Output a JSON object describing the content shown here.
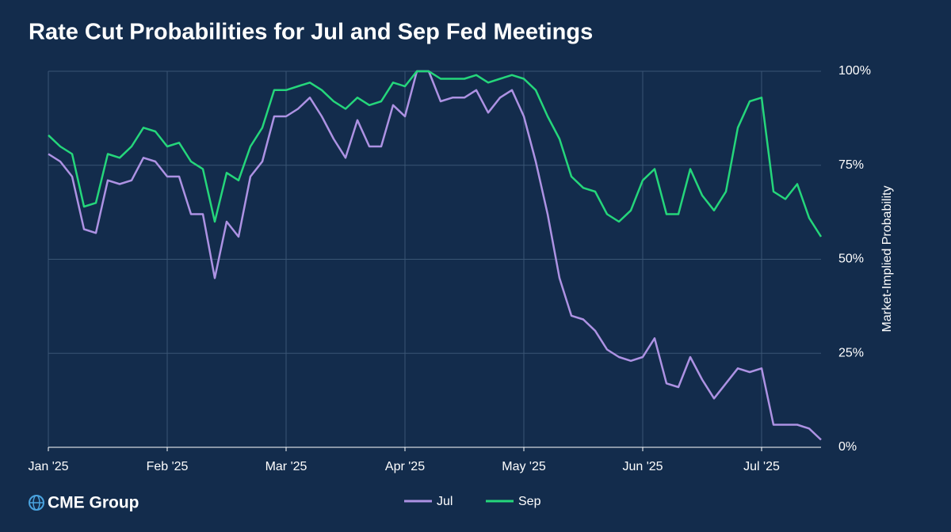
{
  "chart_data": {
    "type": "line",
    "title": "Rate Cut Probabilities for Jul and Sep Fed Meetings",
    "y_label": "Market-Implied Probability",
    "logo": "CME Group",
    "categories": [
      "Jan '25",
      null,
      null,
      null,
      null,
      null,
      null,
      null,
      null,
      null,
      "Feb '25",
      null,
      null,
      null,
      null,
      null,
      null,
      null,
      null,
      null,
      "Mar '25",
      null,
      null,
      null,
      null,
      null,
      null,
      null,
      null,
      null,
      "Apr '25",
      null,
      null,
      null,
      null,
      null,
      null,
      null,
      null,
      null,
      "May '25",
      null,
      null,
      null,
      null,
      null,
      null,
      null,
      null,
      null,
      "Jun '25",
      null,
      null,
      null,
      null,
      null,
      null,
      null,
      null,
      null,
      "Jul '25",
      null,
      null,
      null,
      null,
      null
    ],
    "series": [
      {
        "name": "Jul",
        "color": "#ad92e3",
        "values": [
          78,
          76,
          72,
          58,
          57,
          71,
          70,
          71,
          77,
          76,
          72,
          72,
          62,
          62,
          45,
          60,
          56,
          72,
          76,
          88,
          88,
          90,
          93,
          88,
          82,
          77,
          87,
          80,
          80,
          91,
          88,
          100,
          100,
          92,
          93,
          93,
          95,
          89,
          93,
          95,
          88,
          76,
          62,
          45,
          35,
          34,
          31,
          26,
          24,
          23,
          24,
          29,
          17,
          16,
          24,
          18,
          13,
          17,
          21,
          20,
          21,
          6,
          6,
          6,
          5,
          2
        ]
      },
      {
        "name": "Sep",
        "color": "#25d67b",
        "values": [
          83,
          80,
          78,
          64,
          65,
          78,
          77,
          80,
          85,
          84,
          80,
          81,
          76,
          74,
          60,
          73,
          71,
          80,
          85,
          95,
          95,
          96,
          97,
          95,
          92,
          90,
          93,
          91,
          92,
          97,
          96,
          100,
          100,
          98,
          98,
          98,
          99,
          97,
          98,
          99,
          98,
          95,
          88,
          82,
          72,
          69,
          68,
          62,
          60,
          63,
          71,
          74,
          62,
          62,
          74,
          67,
          63,
          68,
          85,
          92,
          93,
          68,
          66,
          70,
          61,
          56
        ]
      }
    ],
    "ylim": [
      0,
      100
    ],
    "yticks": [
      {
        "value": 0,
        "label": "0%"
      },
      {
        "value": 25,
        "label": "25%"
      },
      {
        "value": 50,
        "label": "50%"
      },
      {
        "value": 75,
        "label": "75%"
      },
      {
        "value": 100,
        "label": "100%"
      }
    ],
    "grid": true,
    "legend": "bottom"
  }
}
